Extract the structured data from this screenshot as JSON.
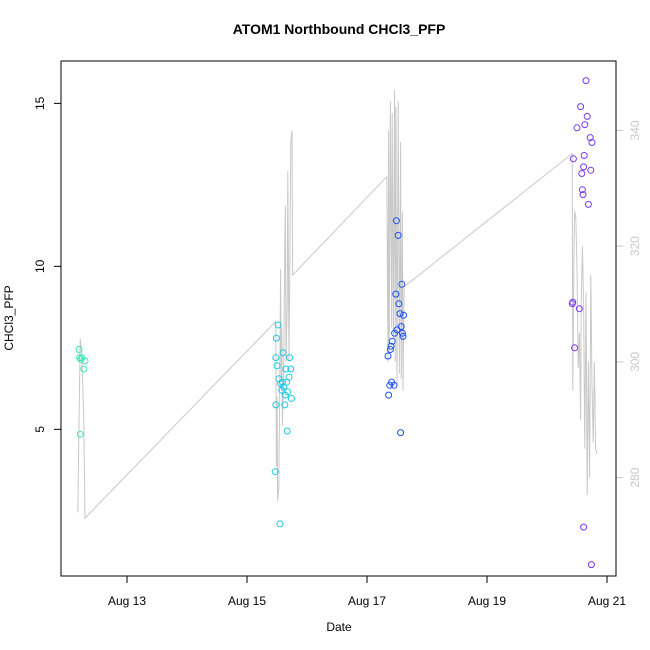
{
  "chart_data": {
    "type": "scatter",
    "title": "ATOM1 Northbound CHCl3_PFP",
    "xlabel": "Date",
    "ylabel": "CHCl3_PFP",
    "x_ticks": [
      {
        "day": 13,
        "label": "Aug 13"
      },
      {
        "day": 15,
        "label": "Aug 15"
      },
      {
        "day": 17,
        "label": "Aug 17"
      },
      {
        "day": 19,
        "label": "Aug 19"
      },
      {
        "day": 21,
        "label": "Aug 21"
      }
    ],
    "xlim": [
      11.9,
      21.15
    ],
    "y_left": {
      "ticks": [
        5,
        10,
        15
      ],
      "lim": [
        0.5,
        16.3
      ]
    },
    "y_right": {
      "ticks": [
        280,
        300,
        320,
        340
      ],
      "lim": [
        263,
        352
      ]
    },
    "right_axis_color": "#c8c8c8",
    "points": [
      {
        "day": 12.2,
        "y": 7.45,
        "color": "#3ee6b5"
      },
      {
        "day": 12.21,
        "y": 7.2,
        "color": "#3ee6b5"
      },
      {
        "day": 12.23,
        "y": 7.15,
        "color": "#3ee6b5"
      },
      {
        "day": 12.25,
        "y": 7.2,
        "color": "#3ee6b5"
      },
      {
        "day": 12.3,
        "y": 7.1,
        "color": "#3ee6b5"
      },
      {
        "day": 12.28,
        "y": 6.85,
        "color": "#3ee6b5"
      },
      {
        "day": 12.22,
        "y": 4.85,
        "color": "#3ee6b5"
      },
      {
        "day": 15.47,
        "y": 3.7,
        "color": "#22c6e6"
      },
      {
        "day": 15.48,
        "y": 5.75,
        "color": "#22c6e6"
      },
      {
        "day": 15.48,
        "y": 7.2,
        "color": "#22c6e6"
      },
      {
        "day": 15.49,
        "y": 7.8,
        "color": "#22c6e6"
      },
      {
        "day": 15.5,
        "y": 6.95,
        "color": "#22c6e6"
      },
      {
        "day": 15.52,
        "y": 8.2,
        "color": "#22c6e6"
      },
      {
        "day": 15.53,
        "y": 6.55,
        "color": "#22c6e6"
      },
      {
        "day": 15.55,
        "y": 2.1,
        "color": "#22c6e6"
      },
      {
        "day": 15.56,
        "y": 6.4,
        "color": "#22c6e6"
      },
      {
        "day": 15.58,
        "y": 6.2,
        "color": "#22c6e6"
      },
      {
        "day": 15.59,
        "y": 6.45,
        "color": "#22c6e6"
      },
      {
        "day": 15.6,
        "y": 7.35,
        "color": "#22c6e6"
      },
      {
        "day": 15.61,
        "y": 6.3,
        "color": "#22c6e6"
      },
      {
        "day": 15.63,
        "y": 5.75,
        "color": "#22c6e6"
      },
      {
        "day": 15.64,
        "y": 6.05,
        "color": "#22c6e6"
      },
      {
        "day": 15.65,
        "y": 6.85,
        "color": "#22c6e6"
      },
      {
        "day": 15.66,
        "y": 6.45,
        "color": "#22c6e6"
      },
      {
        "day": 15.67,
        "y": 4.95,
        "color": "#22c6e6"
      },
      {
        "day": 15.68,
        "y": 6.15,
        "color": "#22c6e6"
      },
      {
        "day": 15.7,
        "y": 6.6,
        "color": "#22c6e6"
      },
      {
        "day": 15.71,
        "y": 7.2,
        "color": "#22c6e6"
      },
      {
        "day": 15.73,
        "y": 6.85,
        "color": "#22c6e6"
      },
      {
        "day": 15.74,
        "y": 5.95,
        "color": "#22c6e6"
      },
      {
        "day": 17.35,
        "y": 7.25,
        "color": "#1d4fef"
      },
      {
        "day": 17.36,
        "y": 6.05,
        "color": "#1d4fef"
      },
      {
        "day": 17.38,
        "y": 6.35,
        "color": "#1d4fef"
      },
      {
        "day": 17.39,
        "y": 7.45,
        "color": "#1d4fef"
      },
      {
        "day": 17.4,
        "y": 7.55,
        "color": "#1d4fef"
      },
      {
        "day": 17.41,
        "y": 6.45,
        "color": "#1d4fef"
      },
      {
        "day": 17.42,
        "y": 7.7,
        "color": "#1d4fef"
      },
      {
        "day": 17.45,
        "y": 6.35,
        "color": "#1d4fef"
      },
      {
        "day": 17.46,
        "y": 7.95,
        "color": "#1d4fef"
      },
      {
        "day": 17.48,
        "y": 9.15,
        "color": "#1d4fef"
      },
      {
        "day": 17.49,
        "y": 11.4,
        "color": "#1d4fef"
      },
      {
        "day": 17.5,
        "y": 8.05,
        "color": "#1d4fef"
      },
      {
        "day": 17.52,
        "y": 10.95,
        "color": "#1d4fef"
      },
      {
        "day": 17.53,
        "y": 8.85,
        "color": "#1d4fef"
      },
      {
        "day": 17.55,
        "y": 8.55,
        "color": "#1d4fef"
      },
      {
        "day": 17.57,
        "y": 8.15,
        "color": "#1d4fef"
      },
      {
        "day": 17.58,
        "y": 9.45,
        "color": "#1d4fef"
      },
      {
        "day": 17.59,
        "y": 7.95,
        "color": "#1d4fef"
      },
      {
        "day": 17.6,
        "y": 7.85,
        "color": "#1d4fef"
      },
      {
        "day": 17.61,
        "y": 8.5,
        "color": "#1d4fef"
      },
      {
        "day": 17.56,
        "y": 4.9,
        "color": "#1d4fef"
      },
      {
        "day": 20.42,
        "y": 8.85,
        "color": "#7a38ef"
      },
      {
        "day": 20.43,
        "y": 8.9,
        "color": "#7a38ef"
      },
      {
        "day": 20.44,
        "y": 13.3,
        "color": "#7a38ef"
      },
      {
        "day": 20.46,
        "y": 7.5,
        "color": "#7a38ef"
      },
      {
        "day": 20.5,
        "y": 14.25,
        "color": "#7a38ef"
      },
      {
        "day": 20.54,
        "y": 8.7,
        "color": "#7a38ef"
      },
      {
        "day": 20.56,
        "y": 14.9,
        "color": "#7a38ef"
      },
      {
        "day": 20.58,
        "y": 12.85,
        "color": "#7a38ef"
      },
      {
        "day": 20.59,
        "y": 12.35,
        "color": "#7a38ef"
      },
      {
        "day": 20.6,
        "y": 12.2,
        "color": "#7a38ef"
      },
      {
        "day": 20.61,
        "y": 13.05,
        "color": "#7a38ef"
      },
      {
        "day": 20.62,
        "y": 13.4,
        "color": "#7a38ef"
      },
      {
        "day": 20.63,
        "y": 14.35,
        "color": "#7a38ef"
      },
      {
        "day": 20.65,
        "y": 15.7,
        "color": "#7a38ef"
      },
      {
        "day": 20.67,
        "y": 14.6,
        "color": "#7a38ef"
      },
      {
        "day": 20.69,
        "y": 11.9,
        "color": "#7a38ef"
      },
      {
        "day": 20.72,
        "y": 13.95,
        "color": "#7a38ef"
      },
      {
        "day": 20.73,
        "y": 12.95,
        "color": "#7a38ef"
      },
      {
        "day": 20.75,
        "y": 13.8,
        "color": "#7a38ef"
      },
      {
        "day": 20.61,
        "y": 2.0,
        "color": "#7a38ef"
      },
      {
        "day": 20.74,
        "y": 0.85,
        "color": "#7a38ef"
      }
    ],
    "overlay_line": {
      "color": "#c8c8c8",
      "points": [
        [
          12.18,
          274.0
        ],
        [
          12.22,
          304.0
        ],
        [
          12.24,
          302.0
        ],
        [
          12.26,
          297.0
        ],
        [
          12.28,
          290.0
        ],
        [
          12.3,
          273.0
        ],
        [
          15.48,
          307.0
        ],
        [
          15.49,
          282.0
        ],
        [
          15.5,
          294.0
        ],
        [
          15.51,
          276.0
        ],
        [
          15.53,
          278.0
        ],
        [
          15.55,
          302.0
        ],
        [
          15.56,
          316.0
        ],
        [
          15.57,
          297.0
        ],
        [
          15.58,
          306.0
        ],
        [
          15.59,
          289.0
        ],
        [
          15.61,
          297.0
        ],
        [
          15.63,
          320.0
        ],
        [
          15.64,
          327.0
        ],
        [
          15.65,
          300.0
        ],
        [
          15.67,
          310.0
        ],
        [
          15.68,
          333.0
        ],
        [
          15.7,
          300.0
        ],
        [
          15.71,
          312.0
        ],
        [
          15.73,
          338.0
        ],
        [
          15.75,
          340.0
        ],
        [
          15.76,
          315.0
        ],
        [
          17.33,
          332.0
        ],
        [
          17.35,
          300.0
        ],
        [
          17.36,
          340.0
        ],
        [
          17.37,
          302.0
        ],
        [
          17.39,
          345.0
        ],
        [
          17.41,
          306.0
        ],
        [
          17.42,
          343.0
        ],
        [
          17.44,
          304.0
        ],
        [
          17.46,
          347.0
        ],
        [
          17.47,
          300.0
        ],
        [
          17.48,
          344.0
        ],
        [
          17.5,
          296.0
        ],
        [
          17.52,
          345.0
        ],
        [
          17.54,
          298.0
        ],
        [
          17.56,
          338.0
        ],
        [
          17.57,
          297.0
        ],
        [
          17.59,
          326.0
        ],
        [
          17.6,
          295.0
        ],
        [
          17.62,
          313.0
        ],
        [
          20.42,
          336.0
        ],
        [
          20.43,
          295.0
        ],
        [
          20.45,
          320.0
        ],
        [
          20.46,
          326.0
        ],
        [
          20.48,
          325.0
        ],
        [
          20.5,
          316.0
        ],
        [
          20.52,
          299.0
        ],
        [
          20.54,
          305.0
        ],
        [
          20.56,
          290.0
        ],
        [
          20.57,
          310.0
        ],
        [
          20.59,
          320.0
        ],
        [
          20.61,
          310.0
        ],
        [
          20.63,
          285.0
        ],
        [
          20.65,
          312.0
        ],
        [
          20.67,
          277.0
        ],
        [
          20.69,
          300.0
        ],
        [
          20.71,
          280.0
        ],
        [
          20.73,
          315.0
        ],
        [
          20.75,
          296.0
        ],
        [
          20.77,
          286.0
        ],
        [
          20.79,
          300.0
        ],
        [
          20.81,
          285.0
        ],
        [
          20.83,
          284.0
        ]
      ]
    }
  }
}
